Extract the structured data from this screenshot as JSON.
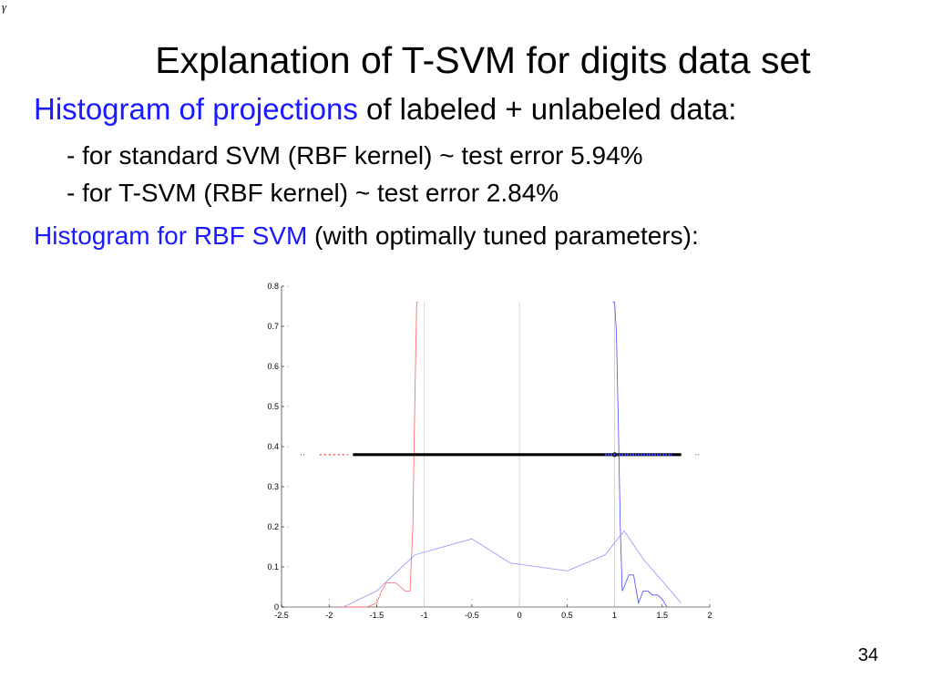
{
  "slide": {
    "corner_mark": "γ",
    "title": "Explanation of T-SVM for digits data set",
    "line1_highlight": "Histogram of projections",
    "line1_rest": " of labeled + unlabeled data:",
    "line2": "- for standard SVM (RBF kernel) ~ test error 5.94%",
    "line3": "- for T-SVM (RBF kernel) ~ test error 2.84%",
    "line4_highlight": "Histogram for RBF SVM",
    "line4_rest": " (with optimally tuned parameters):",
    "page_number": "34",
    "colors": {
      "highlight": "#1a1aff",
      "red_series": "#ff6060",
      "blue_series": "#4a4aff",
      "gray_series": "#9090ff"
    }
  },
  "chart_data": {
    "type": "line",
    "xlim": [
      -2.5,
      2
    ],
    "ylim": [
      0,
      0.8
    ],
    "x_ticks": [
      -2.5,
      -2,
      -1.5,
      -1,
      -0.5,
      0,
      0.5,
      1,
      1.5,
      2
    ],
    "x_tick_labels": [
      "-2.5",
      "-2",
      "-1.5",
      "-1",
      "-0.5",
      "0",
      "0.5",
      "1",
      "1.5",
      "2"
    ],
    "y_ticks": [
      0,
      0.1,
      0.2,
      0.3,
      0.4,
      0.5,
      0.6,
      0.7,
      0.8
    ],
    "y_tick_labels": [
      "0",
      "0.1",
      "0.2",
      "0.3",
      "0.4",
      "0.5",
      "0.6",
      "0.7",
      "0.8"
    ],
    "vertical_lines": [
      -1,
      0,
      1
    ],
    "points_band": {
      "y": 0.38,
      "x_from": -1.75,
      "x_to": 1.7
    },
    "series": [
      {
        "color": "#ff6060",
        "x": [
          -1.9,
          -1.8,
          -1.7,
          -1.6,
          -1.5,
          -1.45,
          -1.4,
          -1.35,
          -1.3,
          -1.25,
          -1.2,
          -1.15,
          -1.12,
          -1.1,
          -1.08,
          -1.06
        ],
        "y": [
          0.0,
          0.0,
          0.0,
          0.0,
          0.01,
          0.04,
          0.06,
          0.06,
          0.06,
          0.05,
          0.04,
          0.04,
          0.2,
          0.5,
          0.76,
          0.76
        ]
      },
      {
        "color": "#4a4aff",
        "x": [
          0.98,
          1.0,
          1.02,
          1.04,
          1.06,
          1.08,
          1.1,
          1.15,
          1.2,
          1.25,
          1.3,
          1.35,
          1.4,
          1.45,
          1.5,
          1.55
        ],
        "y": [
          0.76,
          0.76,
          0.68,
          0.45,
          0.2,
          0.04,
          0.05,
          0.08,
          0.08,
          0.01,
          0.04,
          0.04,
          0.03,
          0.03,
          0.02,
          0.0
        ]
      },
      {
        "color": "#9090ff",
        "x": [
          -1.85,
          -1.5,
          -1.1,
          -0.95,
          -0.5,
          -0.1,
          0.5,
          0.9,
          1.1,
          1.3,
          1.7
        ],
        "y": [
          0.0,
          0.04,
          0.13,
          0.14,
          0.17,
          0.11,
          0.09,
          0.13,
          0.19,
          0.12,
          0.01
        ]
      }
    ]
  }
}
